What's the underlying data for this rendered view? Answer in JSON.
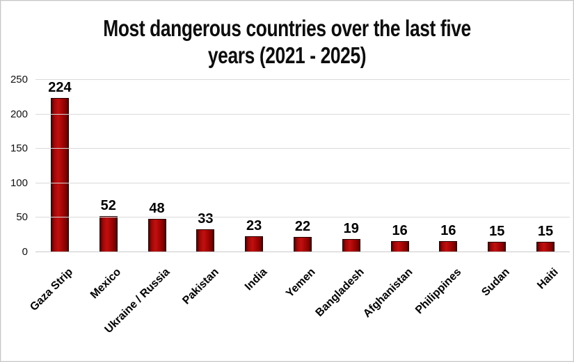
{
  "title": {
    "lines": [
      "Most dangerous countries over the last five",
      "years (2021 - 2025)"
    ]
  },
  "chart_data": {
    "type": "bar",
    "title": "Most dangerous countries over the last five years (2021 - 2025)",
    "categories": [
      "Gaza Strip",
      "Mexico",
      "Ukraine / Russia",
      "Pakistan",
      "India",
      "Yemen",
      "Bangladesh",
      "Afghanistan",
      "Philippines",
      "Sudan",
      "Haiti"
    ],
    "values": [
      224,
      52,
      48,
      33,
      23,
      22,
      19,
      16,
      16,
      15,
      15
    ],
    "xlabel": "",
    "ylabel": "",
    "ylim": [
      0,
      250
    ],
    "yticks": [
      0,
      50,
      100,
      150,
      200,
      250
    ],
    "grid": true,
    "legend_position": "none",
    "bar_fill": "#b50d0d",
    "bar_edge": "#2a0000",
    "gridline_color": "#d9d9d9",
    "text_color": "#000000",
    "background": "#ffffff"
  }
}
